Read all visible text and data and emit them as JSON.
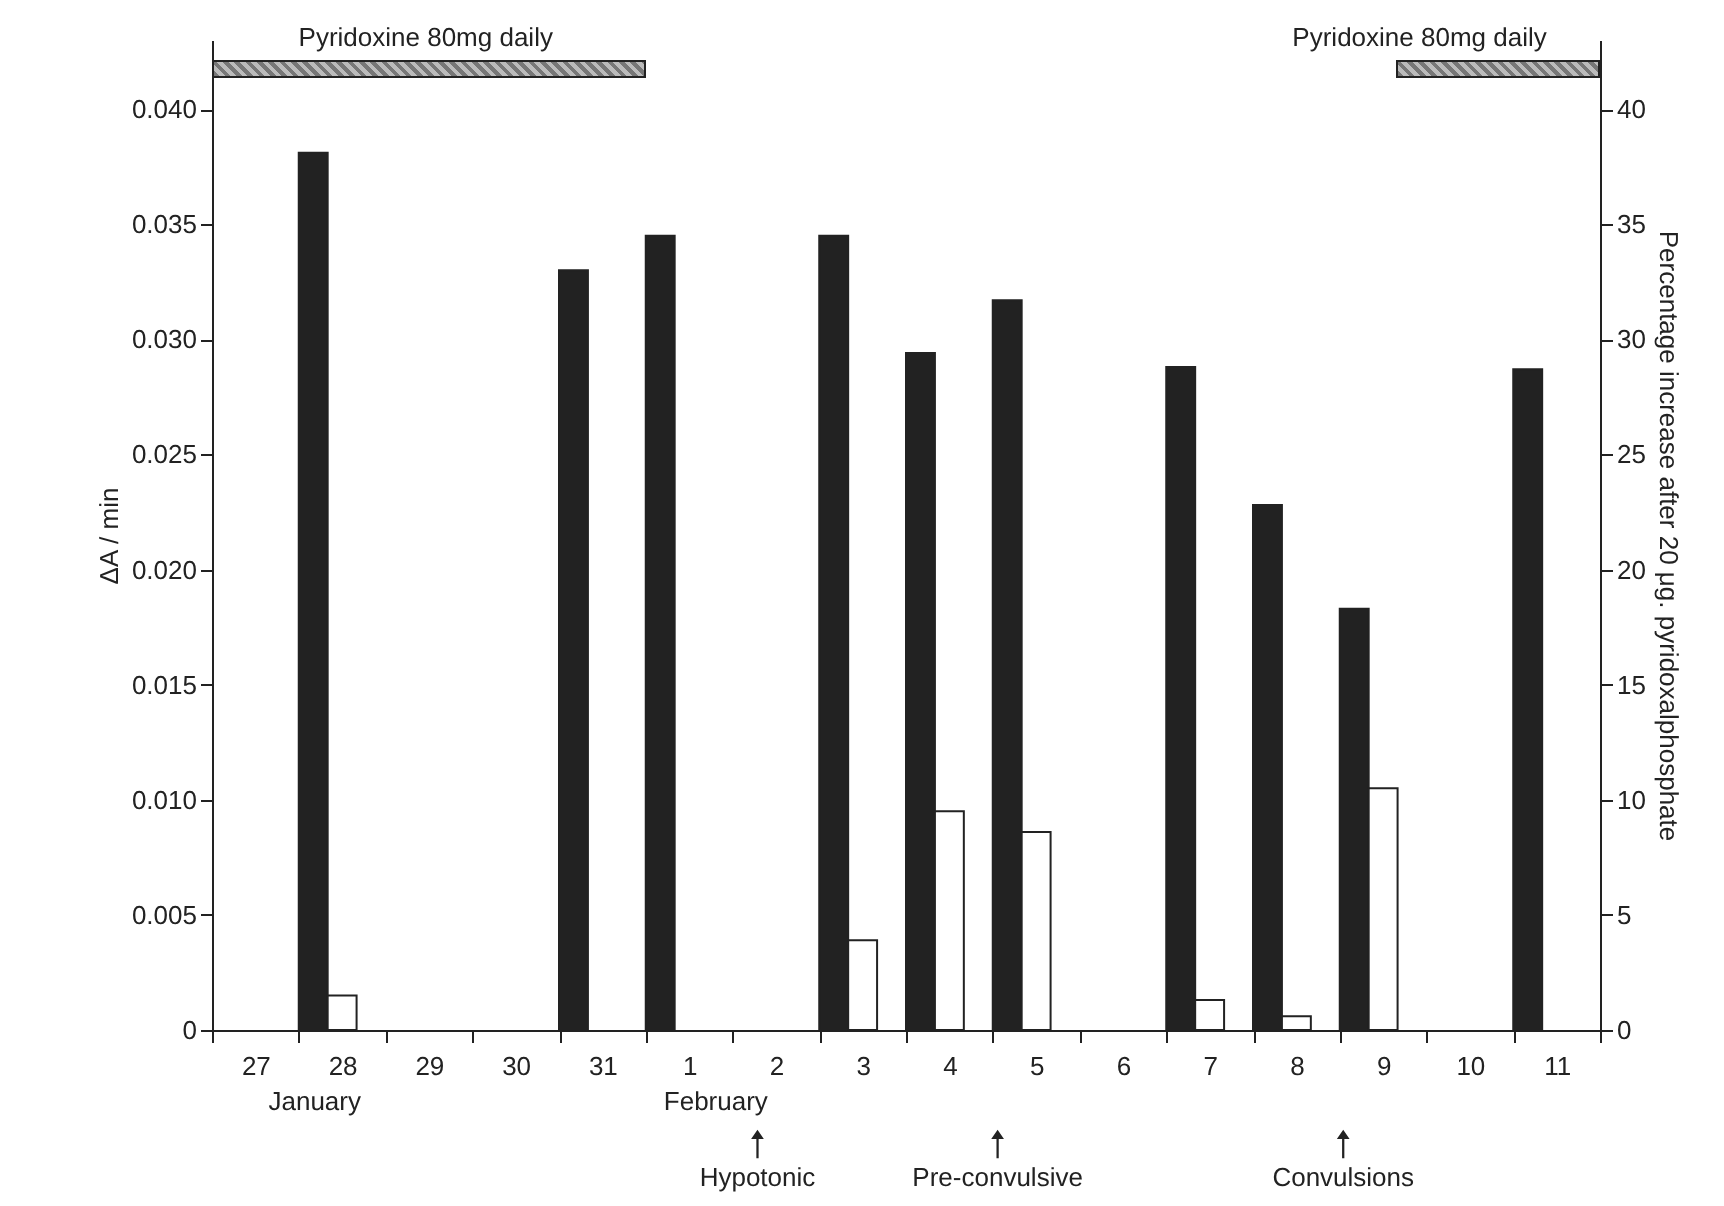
{
  "chart_data": {
    "type": "bar",
    "categories": [
      "27",
      "28",
      "29",
      "30",
      "31",
      "1",
      "2",
      "3",
      "4",
      "5",
      "6",
      "7",
      "8",
      "9",
      "10",
      "11"
    ],
    "series": [
      {
        "color": "#222222",
        "values": [
          null,
          0.0381,
          null,
          null,
          0.033,
          0.0345,
          null,
          0.0345,
          0.0294,
          0.0317,
          null,
          0.0288,
          0.0228,
          0.0183,
          null,
          0.0287
        ]
      },
      {
        "color": "#ffffff",
        "axis": "y2",
        "values": [
          null,
          1.5,
          null,
          null,
          null,
          null,
          null,
          3.9,
          9.5,
          8.6,
          null,
          1.3,
          0.6,
          10.5,
          null,
          null
        ]
      }
    ],
    "ylabel": "ΔA / min",
    "y2label": "Percentage increase after 20 μg. pyridoxalphosphate",
    "ylim": [
      0,
      0.043
    ],
    "yticks": [
      0,
      {
        "value": 0.005,
        "label": "0.005"
      },
      {
        "value": 0.01,
        "label": "0.010"
      },
      {
        "value": 0.015,
        "label": "0.015"
      },
      {
        "value": 0.02,
        "label": "0.020"
      },
      {
        "value": 0.025,
        "label": "0.025"
      },
      {
        "value": 0.03,
        "label": "0.030"
      },
      {
        "value": 0.035,
        "label": "0.035"
      },
      {
        "value": 0.04,
        "label": "0.040"
      }
    ],
    "y2lim": [
      0,
      43
    ],
    "y2ticks": [
      0,
      5,
      10,
      15,
      20,
      25,
      30,
      35,
      40
    ],
    "annotations": [
      "Pyridoxine 80mg daily",
      "Pyridoxine 80mg daily",
      "January",
      "February",
      "Hypotonic",
      "Pre-convulsive",
      "Convulsions"
    ],
    "grid": false
  }
}
